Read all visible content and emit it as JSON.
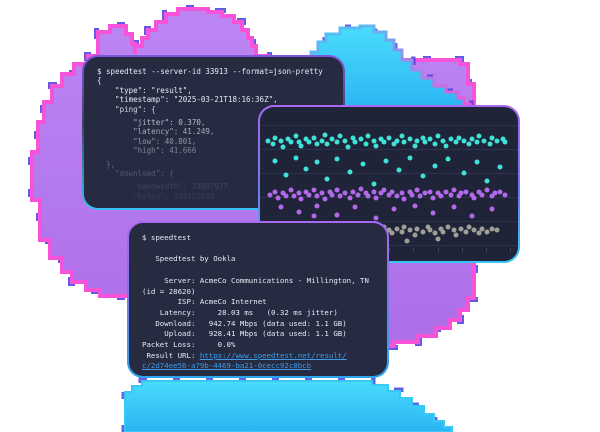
{
  "colors": {
    "terminal_bg": "#262b42",
    "panel_bg": "#1f2439",
    "text": "#e8eaf4",
    "link": "#3d9ce8",
    "cloud_purple": "#b479ec",
    "cloud_rim_pink": "#f653d9",
    "cloud_rim_blue": "#4440e2",
    "cloud_cyan": "#33cdf7",
    "dot_cyan": "#3fe2d7",
    "dot_purple": "#b469ea",
    "dot_gray": "#a19e97"
  },
  "json_terminal": {
    "lines": [
      "$ speedtest --server-id 33913 --format=json-pretty",
      "{",
      "    \"type\": \"result\",",
      "    \"timestamp\": \"2025-03-21T18:16:36Z\",",
      "    \"ping\": {",
      "",
      "        \"jitter\": 0.370,",
      "        \"latency\": 41.249,",
      "        \"low\": 40.801,",
      "        \"high\": 41.666",
      "",
      "  },",
      "    \"download\": {",
      "",
      "        \"bandwidth\": 24097927",
      "        \"bytes\": 239152592"
    ]
  },
  "result_terminal": {
    "lines": [
      [
        {
          "t": "$ speedtest"
        }
      ],
      [],
      [
        {
          "t": "   Speedtest by Ookla"
        }
      ],
      [],
      [
        {
          "t": "     Server: AcmeCo Communications - Millington, TN"
        }
      ],
      [
        {
          "t": "(id = 28620)"
        }
      ],
      [
        {
          "t": "        ISP: AcmeCo Internet"
        }
      ],
      [
        {
          "t": "    Latency:     28.03 ms   (0.32 ms jitter)"
        }
      ],
      [
        {
          "t": "   Download:   942.74 Mbps (data used: 1.1 GB)"
        }
      ],
      [
        {
          "t": "     Upload:   928.41 Mbps (data used: 1.1 GB)"
        }
      ],
      [
        {
          "t": "Packet Loss:     0.0%"
        }
      ],
      [
        {
          "t": " Result URL: "
        },
        {
          "t": "https://www.speedtest.net/result/",
          "c": "link"
        }
      ],
      [
        {
          "t": "c/2d74ee56-a79b-4469-ba21-0cecc92c8bcb",
          "c": "link"
        }
      ]
    ]
  },
  "scatter_chart": {
    "type": "strip",
    "title": "",
    "xlabel": "",
    "ylabel": "",
    "grid": true,
    "legend": "none",
    "gridlines_pct": [
      11.5,
      27,
      43,
      58.5,
      74,
      89.5
    ],
    "ticks_pct": [
      3,
      12.4,
      21.8,
      31.2,
      40.6,
      50,
      59.4,
      68.8,
      78.2,
      87.6,
      97
    ],
    "ticks_y_pct": 91.5,
    "series": [
      {
        "name": "cyan-band",
        "color": "#3fe2d7",
        "points": [
          [
            3,
            22
          ],
          [
            5,
            24
          ],
          [
            6,
            20
          ],
          [
            8,
            22
          ],
          [
            9,
            26
          ],
          [
            11,
            21
          ],
          [
            12,
            23
          ],
          [
            14,
            19
          ],
          [
            15,
            23
          ],
          [
            16,
            25
          ],
          [
            18,
            21
          ],
          [
            19,
            23
          ],
          [
            21,
            20
          ],
          [
            22,
            24
          ],
          [
            24,
            22
          ],
          [
            25,
            18
          ],
          [
            26,
            24
          ],
          [
            28,
            21
          ],
          [
            30,
            23
          ],
          [
            31,
            19
          ],
          [
            33,
            22
          ],
          [
            34,
            26
          ],
          [
            36,
            20
          ],
          [
            37,
            23
          ],
          [
            39,
            21
          ],
          [
            41,
            24
          ],
          [
            42,
            19
          ],
          [
            44,
            22
          ],
          [
            45,
            25
          ],
          [
            47,
            21
          ],
          [
            48,
            23
          ],
          [
            50,
            20
          ],
          [
            52,
            24
          ],
          [
            53,
            22
          ],
          [
            55,
            19
          ],
          [
            56,
            23
          ],
          [
            58,
            21
          ],
          [
            60,
            25
          ],
          [
            61,
            22
          ],
          [
            63,
            20
          ],
          [
            64,
            23
          ],
          [
            66,
            21
          ],
          [
            68,
            24
          ],
          [
            69,
            19
          ],
          [
            71,
            22
          ],
          [
            72,
            25
          ],
          [
            74,
            21
          ],
          [
            76,
            23
          ],
          [
            77,
            20
          ],
          [
            79,
            22
          ],
          [
            81,
            24
          ],
          [
            82,
            21
          ],
          [
            84,
            23
          ],
          [
            85,
            19
          ],
          [
            87,
            22
          ],
          [
            89,
            24
          ],
          [
            90,
            20
          ],
          [
            92,
            22
          ],
          [
            94,
            21
          ],
          [
            95,
            23
          ]
        ]
      },
      {
        "name": "cyan-outliers",
        "color": "#3fe2d7",
        "points": [
          [
            6,
            35
          ],
          [
            10,
            44
          ],
          [
            14,
            33
          ],
          [
            18,
            40
          ],
          [
            22,
            36
          ],
          [
            26,
            47
          ],
          [
            30,
            34
          ],
          [
            35,
            42
          ],
          [
            40,
            37
          ],
          [
            44,
            50
          ],
          [
            49,
            35
          ],
          [
            54,
            41
          ],
          [
            58,
            33
          ],
          [
            63,
            45
          ],
          [
            68,
            38
          ],
          [
            73,
            34
          ],
          [
            79,
            43
          ],
          [
            84,
            36
          ],
          [
            88,
            48
          ],
          [
            93,
            39
          ]
        ]
      },
      {
        "name": "purple-band",
        "color": "#b469ea",
        "points": [
          [
            4,
            57
          ],
          [
            6,
            55
          ],
          [
            7,
            59
          ],
          [
            9,
            56
          ],
          [
            10,
            58
          ],
          [
            12,
            54
          ],
          [
            13,
            58
          ],
          [
            15,
            56
          ],
          [
            16,
            60
          ],
          [
            18,
            55
          ],
          [
            19,
            57
          ],
          [
            21,
            54
          ],
          [
            22,
            58
          ],
          [
            24,
            56
          ],
          [
            25,
            60
          ],
          [
            27,
            55
          ],
          [
            28,
            57
          ],
          [
            30,
            54
          ],
          [
            31,
            58
          ],
          [
            33,
            56
          ],
          [
            35,
            59
          ],
          [
            36,
            55
          ],
          [
            38,
            57
          ],
          [
            39,
            53
          ],
          [
            41,
            56
          ],
          [
            42,
            58
          ],
          [
            44,
            55
          ],
          [
            45,
            59
          ],
          [
            47,
            56
          ],
          [
            48,
            54
          ],
          [
            50,
            57
          ],
          [
            51,
            55
          ],
          [
            53,
            58
          ],
          [
            55,
            56
          ],
          [
            56,
            60
          ],
          [
            58,
            55
          ],
          [
            59,
            57
          ],
          [
            61,
            54
          ],
          [
            62,
            58
          ],
          [
            64,
            56
          ],
          [
            66,
            55
          ],
          [
            67,
            59
          ],
          [
            69,
            56
          ],
          [
            70,
            58
          ],
          [
            72,
            55
          ],
          [
            74,
            57
          ],
          [
            75,
            54
          ],
          [
            77,
            58
          ],
          [
            78,
            56
          ],
          [
            80,
            55
          ],
          [
            82,
            57
          ],
          [
            83,
            59
          ],
          [
            85,
            55
          ],
          [
            86,
            57
          ],
          [
            88,
            54
          ],
          [
            90,
            58
          ],
          [
            91,
            56
          ],
          [
            93,
            55
          ],
          [
            95,
            57
          ]
        ]
      },
      {
        "name": "purple-outliers",
        "color": "#b469ea",
        "points": [
          [
            8,
            65
          ],
          [
            15,
            68
          ],
          [
            21,
            71
          ],
          [
            22,
            64
          ],
          [
            30,
            70
          ],
          [
            37,
            65
          ],
          [
            45,
            72
          ],
          [
            52,
            66
          ],
          [
            60,
            64
          ],
          [
            67,
            69
          ],
          [
            75,
            65
          ],
          [
            82,
            71
          ],
          [
            90,
            66
          ]
        ]
      },
      {
        "name": "gray-band",
        "color": "#a19e97",
        "points": [
          [
            30,
            80
          ],
          [
            32,
            78
          ],
          [
            33,
            82
          ],
          [
            35,
            80
          ],
          [
            37,
            79
          ],
          [
            38,
            81
          ],
          [
            40,
            78
          ],
          [
            42,
            80
          ],
          [
            43,
            83
          ],
          [
            45,
            79
          ],
          [
            46,
            81
          ],
          [
            48,
            78
          ],
          [
            50,
            80
          ],
          [
            51,
            82
          ],
          [
            53,
            79
          ],
          [
            55,
            81
          ],
          [
            56,
            78
          ],
          [
            58,
            80
          ],
          [
            60,
            83
          ],
          [
            61,
            79
          ],
          [
            63,
            81
          ],
          [
            65,
            78
          ],
          [
            66,
            80
          ],
          [
            68,
            82
          ],
          [
            70,
            79
          ],
          [
            71,
            81
          ],
          [
            73,
            78
          ],
          [
            75,
            80
          ],
          [
            76,
            83
          ],
          [
            78,
            79
          ],
          [
            80,
            81
          ],
          [
            81,
            78
          ],
          [
            83,
            80
          ],
          [
            85,
            82
          ],
          [
            86,
            79
          ],
          [
            88,
            81
          ],
          [
            90,
            79
          ],
          [
            92,
            80
          ],
          [
            44,
            86
          ],
          [
            57,
            87
          ],
          [
            69,
            86
          ]
        ]
      }
    ]
  }
}
